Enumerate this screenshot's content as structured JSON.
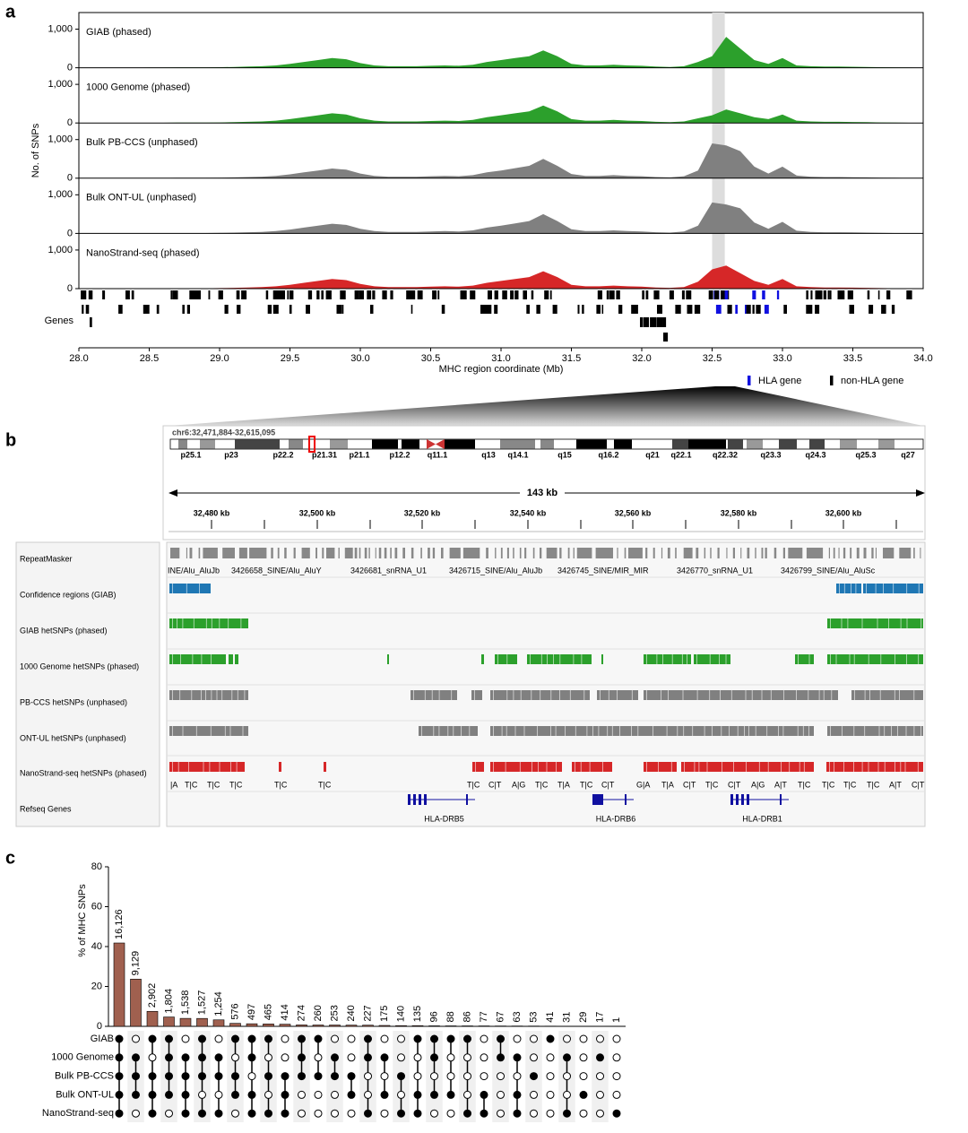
{
  "panel_labels": [
    "a",
    "b",
    "c"
  ],
  "chart_data": [
    {
      "type": "area",
      "ylabel": "No. of SNPs",
      "xlabel": "MHC region coordinate (Mb)",
      "x": [
        28.0,
        28.1,
        28.2,
        28.3,
        28.4,
        28.5,
        28.6,
        28.7,
        28.8,
        28.9,
        29.0,
        29.1,
        29.2,
        29.3,
        29.4,
        29.5,
        29.6,
        29.7,
        29.8,
        29.9,
        30.0,
        30.1,
        30.2,
        30.3,
        30.4,
        30.5,
        30.6,
        30.7,
        30.8,
        30.9,
        31.0,
        31.1,
        31.2,
        31.3,
        31.4,
        31.5,
        31.6,
        31.7,
        31.8,
        31.9,
        32.0,
        32.1,
        32.2,
        32.3,
        32.4,
        32.5,
        32.6,
        32.7,
        32.8,
        32.9,
        33.0,
        33.1,
        33.2,
        33.3,
        33.4,
        33.5,
        33.6,
        33.7,
        33.8,
        33.9,
        34.0
      ],
      "xlim": [
        28,
        34
      ],
      "xticks": [
        {
          "value": 28,
          "label": "28.0"
        },
        {
          "value": 28.5,
          "label": "28.5"
        },
        {
          "value": 29,
          "label": "29.0"
        },
        {
          "value": 29.5,
          "label": "29.5"
        },
        {
          "value": 30,
          "label": "30.0"
        },
        {
          "value": 30.5,
          "label": "30.5"
        },
        {
          "value": 31,
          "label": "31.0"
        },
        {
          "value": 31.5,
          "label": "31.5"
        },
        {
          "value": 32,
          "label": "32.0"
        },
        {
          "value": 32.5,
          "label": "32.5"
        },
        {
          "value": 33,
          "label": "33.0"
        },
        {
          "value": 33.5,
          "label": "33.5"
        },
        {
          "value": 34,
          "label": "34.0"
        }
      ],
      "ylim": [
        0,
        1430
      ],
      "yticks": [
        0,
        {
          "value": 1000,
          "label": "1,000"
        }
      ],
      "highlight": [
        32.5,
        32.59
      ],
      "series": [
        {
          "name": "GIAB (phased)",
          "color": "#2ca02c",
          "values": [
            0,
            0,
            0,
            0,
            0,
            5,
            5,
            10,
            10,
            10,
            15,
            20,
            30,
            40,
            60,
            100,
            150,
            200,
            250,
            220,
            120,
            60,
            40,
            40,
            40,
            50,
            60,
            50,
            80,
            150,
            200,
            250,
            300,
            450,
            300,
            100,
            60,
            60,
            80,
            60,
            50,
            30,
            20,
            40,
            150,
            300,
            800,
            500,
            200,
            100,
            250,
            60,
            40,
            30,
            30,
            25,
            20,
            15,
            10,
            5,
            0
          ]
        },
        {
          "name": "1000 Genome (phased)",
          "color": "#2ca02c",
          "values": [
            0,
            0,
            0,
            0,
            0,
            5,
            5,
            10,
            10,
            10,
            15,
            20,
            30,
            40,
            60,
            100,
            150,
            200,
            250,
            220,
            120,
            60,
            40,
            40,
            40,
            50,
            60,
            50,
            80,
            150,
            200,
            250,
            300,
            450,
            300,
            100,
            60,
            60,
            80,
            60,
            50,
            30,
            20,
            40,
            120,
            200,
            350,
            250,
            150,
            100,
            220,
            60,
            40,
            30,
            30,
            25,
            20,
            15,
            10,
            5,
            0
          ]
        },
        {
          "name": "Bulk PB-CCS (unphased)",
          "color": "#808080",
          "values": [
            0,
            0,
            0,
            0,
            0,
            5,
            5,
            10,
            10,
            10,
            15,
            20,
            30,
            40,
            60,
            100,
            150,
            200,
            250,
            220,
            120,
            60,
            40,
            40,
            40,
            50,
            60,
            50,
            80,
            150,
            200,
            260,
            320,
            500,
            320,
            110,
            60,
            60,
            80,
            60,
            50,
            30,
            20,
            50,
            200,
            900,
            850,
            700,
            300,
            120,
            300,
            70,
            40,
            30,
            30,
            25,
            20,
            15,
            10,
            5,
            0
          ]
        },
        {
          "name": "Bulk ONT-UL (unphased)",
          "color": "#808080",
          "values": [
            0,
            0,
            0,
            0,
            0,
            5,
            5,
            10,
            10,
            10,
            15,
            20,
            30,
            40,
            60,
            100,
            150,
            200,
            250,
            220,
            120,
            60,
            40,
            40,
            40,
            50,
            60,
            50,
            80,
            150,
            200,
            260,
            320,
            500,
            320,
            110,
            60,
            60,
            80,
            60,
            50,
            30,
            20,
            50,
            200,
            800,
            750,
            650,
            280,
            120,
            300,
            70,
            40,
            30,
            30,
            25,
            20,
            15,
            10,
            5,
            0
          ]
        },
        {
          "name": "NanoStrand-seq (phased)",
          "color": "#d62728",
          "values": [
            0,
            0,
            0,
            0,
            0,
            5,
            5,
            10,
            10,
            10,
            15,
            20,
            30,
            40,
            60,
            100,
            150,
            200,
            250,
            220,
            120,
            60,
            40,
            40,
            40,
            50,
            60,
            50,
            80,
            150,
            200,
            250,
            300,
            450,
            300,
            100,
            60,
            60,
            80,
            60,
            50,
            30,
            20,
            40,
            180,
            500,
            600,
            400,
            200,
            100,
            250,
            60,
            40,
            30,
            30,
            25,
            20,
            15,
            10,
            5,
            0
          ]
        }
      ],
      "genes_label": "Genes",
      "gene_legend": [
        {
          "name": "HLA gene",
          "color": "#1010e0"
        },
        {
          "name": "non-HLA gene",
          "color": "#000000"
        }
      ]
    },
    {
      "type": "upset",
      "ylabel": "% of MHC SNPs",
      "ylim": [
        0,
        80
      ],
      "yticks": [
        0,
        20,
        40,
        60,
        80
      ],
      "color": "#a0604f",
      "values": [
        41.79,
        23.66,
        7.52,
        4.68,
        3.99,
        3.96,
        3.25,
        1.49,
        1.29,
        1.21,
        1.07,
        0.71,
        0.67,
        0.66,
        0.62,
        0.59,
        0.45,
        0.36,
        0.35,
        0.25,
        0.23,
        0.22,
        0.2,
        0.17,
        0.16,
        0.14,
        0.11,
        0.08,
        0.08,
        0.04,
        0.0
      ],
      "count_labels": [
        "16,126",
        "9,129",
        "2,902",
        "1,804",
        "1,538",
        "1,527",
        "1,254",
        "576",
        "497",
        "465",
        "414",
        "274",
        "260",
        "253",
        "240",
        "227",
        "175",
        "140",
        "135",
        "96",
        "88",
        "86",
        "77",
        "67",
        "63",
        "53",
        "41",
        "31",
        "29",
        "17",
        "1"
      ],
      "sets": [
        "GIAB",
        "1000 Genome",
        "Bulk PB-CCS",
        "Bulk ONT-UL",
        "NanoStrand-seq"
      ],
      "membership": [
        [
          1,
          1,
          1,
          1,
          1
        ],
        [
          0,
          1,
          1,
          1,
          0
        ],
        [
          1,
          0,
          1,
          1,
          1
        ],
        [
          1,
          1,
          1,
          1,
          0
        ],
        [
          0,
          1,
          1,
          1,
          1
        ],
        [
          1,
          1,
          1,
          0,
          1
        ],
        [
          0,
          1,
          1,
          0,
          1
        ],
        [
          1,
          0,
          1,
          1,
          0
        ],
        [
          1,
          1,
          0,
          1,
          1
        ],
        [
          1,
          0,
          1,
          0,
          1
        ],
        [
          0,
          0,
          1,
          1,
          1
        ],
        [
          1,
          1,
          1,
          0,
          0
        ],
        [
          1,
          0,
          1,
          0,
          0
        ],
        [
          0,
          1,
          1,
          0,
          0
        ],
        [
          0,
          0,
          1,
          1,
          0
        ],
        [
          1,
          1,
          0,
          0,
          1
        ],
        [
          0,
          1,
          0,
          1,
          0
        ],
        [
          0,
          0,
          1,
          0,
          1
        ],
        [
          1,
          0,
          0,
          1,
          1
        ],
        [
          1,
          1,
          0,
          1,
          0
        ],
        [
          1,
          0,
          0,
          1,
          0
        ],
        [
          1,
          0,
          0,
          0,
          1
        ],
        [
          0,
          0,
          0,
          1,
          1
        ],
        [
          1,
          1,
          0,
          0,
          0
        ],
        [
          0,
          1,
          0,
          1,
          1
        ],
        [
          0,
          0,
          1,
          0,
          0
        ],
        [
          1,
          0,
          0,
          0,
          0
        ],
        [
          0,
          1,
          0,
          0,
          1
        ],
        [
          0,
          0,
          0,
          1,
          0
        ],
        [
          0,
          1,
          0,
          0,
          0
        ],
        [
          0,
          0,
          0,
          0,
          1
        ]
      ]
    }
  ],
  "browser": {
    "locus": "chr6:32,471,884-32,615,095",
    "bands": [
      "p25.1",
      "p23",
      "p22.2",
      "p21.31",
      "p21.1",
      "p12.2",
      "q11.1",
      "q13",
      "q14.1",
      "q15",
      "q16.2",
      "q21",
      "q22.1",
      "q22.32",
      "q23.3",
      "q24.3",
      "q25.3",
      "q27"
    ],
    "span": "143 kb",
    "ruler": [
      "32,480 kb",
      "32,500 kb",
      "32,520 kb",
      "32,540 kb",
      "32,560 kb",
      "32,580 kb",
      "32,600 kb"
    ],
    "tracks": [
      "RepeatMasker",
      "Confidence regions (GIAB)",
      "GIAB hetSNPs (phased)",
      "1000 Genome hetSNPs (phased)",
      "PB-CCS hetSNPs (unphased)",
      "ONT-UL hetSNPs (unphased)",
      "NanoStrand-seq hetSNPs (phased)",
      "Refseq Genes"
    ],
    "repeats": [
      "INE/Alu_AluJb",
      "3426658_SINE/Alu_AluY",
      "3426681_snRNA_U1",
      "3426715_SINE/Alu_AluJb",
      "3426745_SINE/MIR_MIR",
      "3426770_snRNA_U1",
      "3426799_SINE/Alu_AluSc"
    ],
    "alleles": [
      "|A",
      "T|C",
      "T|C",
      "T|C",
      "T|C",
      "T|C",
      "T|C",
      "C|T",
      "A|G",
      "T|C",
      "T|A",
      "T|C",
      "C|T",
      "G|A",
      "T|A",
      "C|T",
      "T|C",
      "C|T",
      "A|G",
      "A|T",
      "T|C",
      "T|C",
      "T|C",
      "T|C",
      "A|T",
      "C|T"
    ],
    "genes": [
      "HLA-DRB5",
      "HLA-DRB6",
      "HLA-DRB1"
    ]
  }
}
